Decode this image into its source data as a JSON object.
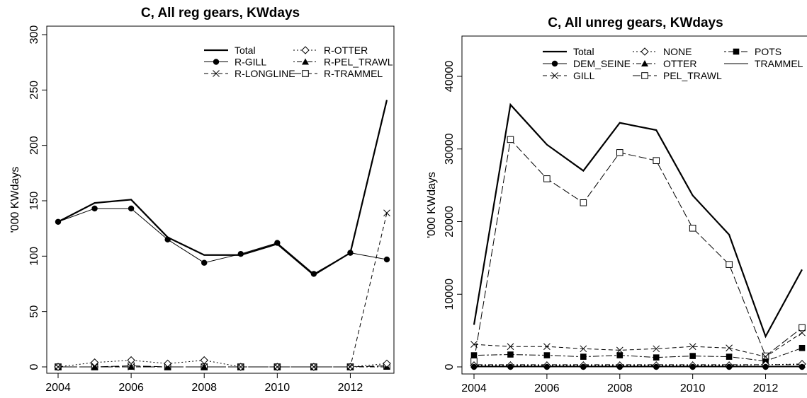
{
  "chart_data": [
    {
      "type": "line",
      "title": "C, All reg gears, KWdays",
      "xlabel": "",
      "ylabel": "'000 KWdays",
      "xlim": [
        2004,
        2013
      ],
      "ylim": [
        0,
        300
      ],
      "x": [
        2004,
        2005,
        2006,
        2007,
        2008,
        2009,
        2010,
        2011,
        2012,
        2013
      ],
      "xticks": [
        2004,
        2006,
        2008,
        2010,
        2012
      ],
      "yticks": [
        0,
        50,
        100,
        150,
        200,
        250,
        300
      ],
      "legend_position": "top-right",
      "legend_columns": 2,
      "series": [
        {
          "name": "Total",
          "line": "solid",
          "marker": "none",
          "bold": true,
          "values": [
            131,
            148,
            151,
            117,
            101,
            101,
            111,
            83,
            103,
            241
          ]
        },
        {
          "name": "R-GILL",
          "line": "solid",
          "marker": "filled-circle",
          "values": [
            131,
            143,
            143,
            115,
            94,
            102,
            112,
            84,
            103,
            97
          ]
        },
        {
          "name": "R-LONGLINE",
          "line": "dashed",
          "marker": "cross",
          "values": [
            0,
            0,
            0,
            0,
            0,
            0,
            0,
            0,
            0,
            139
          ]
        },
        {
          "name": "R-OTTER",
          "line": "dotted",
          "marker": "open-diamond",
          "values": [
            0,
            4,
            6,
            3,
            6,
            0,
            0,
            0,
            0,
            3
          ]
        },
        {
          "name": "R-PEL_TRAWL",
          "line": "dotdash",
          "marker": "filled-triangle",
          "values": [
            0,
            0,
            0,
            0,
            0,
            0,
            0,
            0,
            0,
            0
          ]
        },
        {
          "name": "R-TRAMMEL",
          "line": "longdash",
          "marker": "open-square",
          "values": [
            0,
            0,
            1,
            0,
            0,
            0,
            0,
            0,
            0,
            1
          ]
        }
      ]
    },
    {
      "type": "line",
      "title": "C, All unreg gears, KWdays",
      "xlabel": "",
      "ylabel": "'000 KWdays",
      "xlim": [
        2004,
        2013
      ],
      "ylim": [
        0,
        40000
      ],
      "x": [
        2004,
        2005,
        2006,
        2007,
        2008,
        2009,
        2010,
        2011,
        2012,
        2013
      ],
      "xticks": [
        2004,
        2006,
        2008,
        2010,
        2012
      ],
      "yticks": [
        0,
        10000,
        20000,
        30000,
        40000
      ],
      "legend_position": "top-right",
      "legend_columns": 3,
      "series": [
        {
          "name": "Total",
          "line": "solid",
          "marker": "none",
          "bold": true,
          "values": [
            5800,
            36100,
            30600,
            27000,
            33600,
            32600,
            23600,
            18200,
            4200,
            13400
          ]
        },
        {
          "name": "DEM_SEINE",
          "line": "solid",
          "marker": "filled-circle",
          "values": [
            0,
            0,
            0,
            0,
            0,
            0,
            0,
            0,
            0,
            0
          ]
        },
        {
          "name": "GILL",
          "line": "dashed",
          "marker": "cross",
          "values": [
            3100,
            2800,
            2800,
            2500,
            2300,
            2500,
            2800,
            2600,
            1400,
            4700
          ]
        },
        {
          "name": "NONE",
          "line": "dotted",
          "marker": "open-diamond",
          "values": [
            200,
            200,
            200,
            200,
            200,
            200,
            200,
            200,
            300,
            400
          ]
        },
        {
          "name": "OTTER",
          "line": "dotdash",
          "marker": "filled-triangle",
          "values": [
            300,
            300,
            300,
            300,
            300,
            300,
            300,
            300,
            300,
            300
          ]
        },
        {
          "name": "PEL_TRAWL",
          "line": "longdash",
          "marker": "open-square",
          "values": [
            800,
            31300,
            25900,
            22600,
            29500,
            28400,
            19100,
            14100,
            1500,
            5400
          ]
        },
        {
          "name": "POTS",
          "line": "twodash",
          "marker": "filled-square",
          "values": [
            1600,
            1700,
            1600,
            1400,
            1600,
            1300,
            1500,
            1400,
            800,
            2600
          ]
        },
        {
          "name": "TRAMMEL",
          "line": "solid",
          "marker": "none",
          "values": [
            100,
            100,
            100,
            100,
            100,
            100,
            100,
            100,
            100,
            100
          ]
        }
      ]
    }
  ]
}
